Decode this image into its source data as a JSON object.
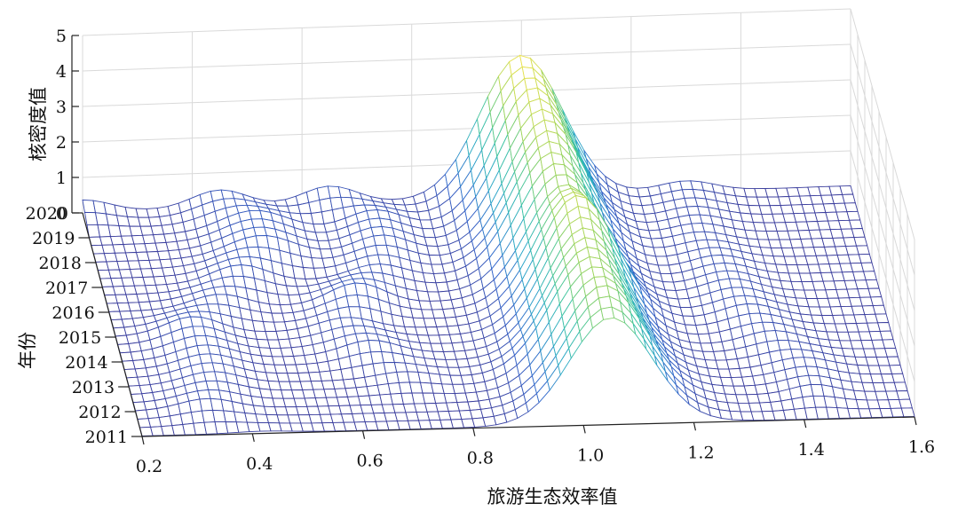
{
  "chart_data": {
    "type": "surface",
    "title": "",
    "xlabel": "旅游生态效率值",
    "ylabel": "年份",
    "zlabel": "核密度值",
    "x_ticks": [
      "0.2",
      "0.4",
      "0.6",
      "0.8",
      "1.0",
      "1.2",
      "1.4",
      "1.6"
    ],
    "year_ticks": [
      "2011",
      "2012",
      "2013",
      "2014",
      "2015",
      "2016",
      "2017",
      "2018",
      "2019",
      "2020"
    ],
    "z_ticks": [
      "0",
      "1",
      "2",
      "3",
      "4",
      "5"
    ],
    "xlim": [
      0.2,
      1.6
    ],
    "zlim": [
      0,
      5
    ],
    "grid": true,
    "colormap": [
      "#3b3d9c",
      "#3366cc",
      "#2aa6c8",
      "#3cc4a2",
      "#9ad45c",
      "#f2e34a"
    ],
    "series": [
      {
        "year": 2011,
        "peaks": [
          {
            "x": 0.42,
            "h": 0.05,
            "w": 0.05
          },
          {
            "x": 1.05,
            "h": 3.0,
            "w": 0.075
          }
        ]
      },
      {
        "year": 2012,
        "peaks": [
          {
            "x": 0.33,
            "h": 0.3,
            "w": 0.05
          },
          {
            "x": 1.05,
            "h": 3.2,
            "w": 0.075
          },
          {
            "x": 1.43,
            "h": 0.25,
            "w": 0.04
          }
        ]
      },
      {
        "year": 2013,
        "peaks": [
          {
            "x": 0.35,
            "h": 0.35,
            "w": 0.05
          },
          {
            "x": 0.7,
            "h": 0.2,
            "w": 0.05
          },
          {
            "x": 1.04,
            "h": 3.3,
            "w": 0.075
          },
          {
            "x": 1.42,
            "h": 0.3,
            "w": 0.05
          }
        ]
      },
      {
        "year": 2014,
        "peaks": [
          {
            "x": 0.35,
            "h": 0.4,
            "w": 0.05
          },
          {
            "x": 0.65,
            "h": 0.4,
            "w": 0.05
          },
          {
            "x": 1.04,
            "h": 3.4,
            "w": 0.07
          },
          {
            "x": 1.38,
            "h": 0.35,
            "w": 0.05
          }
        ]
      },
      {
        "year": 2015,
        "peaks": [
          {
            "x": 0.34,
            "h": 0.5,
            "w": 0.05
          },
          {
            "x": 0.62,
            "h": 0.35,
            "w": 0.05
          },
          {
            "x": 1.04,
            "h": 3.6,
            "w": 0.07
          },
          {
            "x": 1.35,
            "h": 0.4,
            "w": 0.05
          }
        ]
      },
      {
        "year": 2016,
        "peaks": [
          {
            "x": 0.4,
            "h": 0.4,
            "w": 0.05
          },
          {
            "x": 0.65,
            "h": 0.6,
            "w": 0.05
          },
          {
            "x": 1.03,
            "h": 3.2,
            "w": 0.07
          },
          {
            "x": 1.33,
            "h": 0.4,
            "w": 0.05
          }
        ]
      },
      {
        "year": 2017,
        "peaks": [
          {
            "x": 0.45,
            "h": 0.5,
            "w": 0.05
          },
          {
            "x": 0.7,
            "h": 0.4,
            "w": 0.05
          },
          {
            "x": 1.02,
            "h": 3.4,
            "w": 0.07
          },
          {
            "x": 1.32,
            "h": 0.35,
            "w": 0.05
          }
        ]
      },
      {
        "year": 2018,
        "peaks": [
          {
            "x": 0.5,
            "h": 0.6,
            "w": 0.06
          },
          {
            "x": 0.72,
            "h": 0.5,
            "w": 0.05
          },
          {
            "x": 1.02,
            "h": 3.6,
            "w": 0.07
          },
          {
            "x": 1.3,
            "h": 0.3,
            "w": 0.05
          }
        ]
      },
      {
        "year": 2019,
        "peaks": [
          {
            "x": 0.5,
            "h": 0.6,
            "w": 0.06
          },
          {
            "x": 0.72,
            "h": 0.5,
            "w": 0.05
          },
          {
            "x": 1.01,
            "h": 3.8,
            "w": 0.07
          },
          {
            "x": 1.3,
            "h": 0.3,
            "w": 0.05
          }
        ]
      },
      {
        "year": 2020,
        "peaks": [
          {
            "x": 0.2,
            "h": 0.35,
            "w": 0.05
          },
          {
            "x": 0.45,
            "h": 0.5,
            "w": 0.05
          },
          {
            "x": 0.65,
            "h": 0.5,
            "w": 0.05
          },
          {
            "x": 1.0,
            "h": 4.0,
            "w": 0.075
          },
          {
            "x": 1.3,
            "h": 0.3,
            "w": 0.05
          }
        ]
      }
    ]
  }
}
